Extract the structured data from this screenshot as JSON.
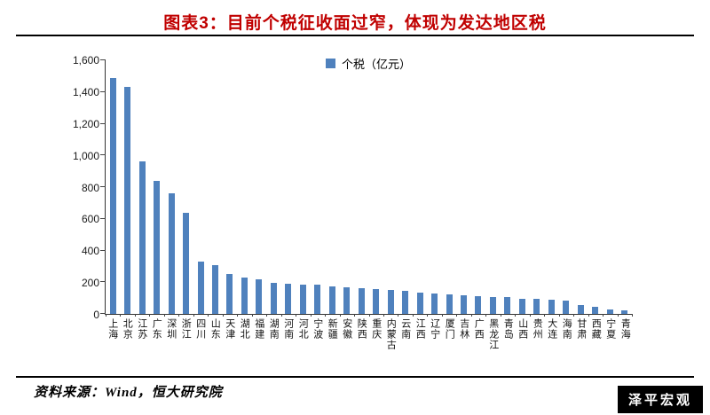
{
  "page": {
    "title": "图表3：目前个税征收面过窄，体现为发达地区税",
    "source": "资料来源：Wind，恒大研究院",
    "watermark": "泽平宏观"
  },
  "chart_data": {
    "type": "bar",
    "title": "图表3：目前个税征收面过窄，体现为发达地区税",
    "legend": "个税（亿元）",
    "legend_position": "top-center",
    "grid": false,
    "bar_color": "#4F81BD",
    "title_color": "#C00000",
    "xlabel": "",
    "ylabel": "",
    "ylim": [
      0,
      1600
    ],
    "yticks": [
      0,
      200,
      400,
      600,
      800,
      1000,
      1200,
      1400,
      1600
    ],
    "categories": [
      "上海",
      "北京",
      "江苏",
      "广东",
      "深圳",
      "浙江",
      "四川",
      "山东",
      "天津",
      "湖北",
      "福建",
      "湖南",
      "河南",
      "河北",
      "宁波",
      "新疆",
      "安徽",
      "陕西",
      "重庆",
      "内蒙古",
      "云南",
      "江西",
      "辽宁",
      "厦门",
      "吉林",
      "广西",
      "黑龙江",
      "青岛",
      "山西",
      "贵州",
      "大连",
      "海南",
      "甘肃",
      "西藏",
      "宁夏",
      "青海"
    ],
    "values": [
      1490,
      1430,
      960,
      840,
      760,
      640,
      330,
      305,
      250,
      232,
      218,
      196,
      190,
      186,
      182,
      172,
      166,
      160,
      155,
      150,
      144,
      134,
      128,
      122,
      116,
      111,
      106,
      104,
      96,
      93,
      89,
      84,
      56,
      45,
      28,
      22
    ]
  }
}
